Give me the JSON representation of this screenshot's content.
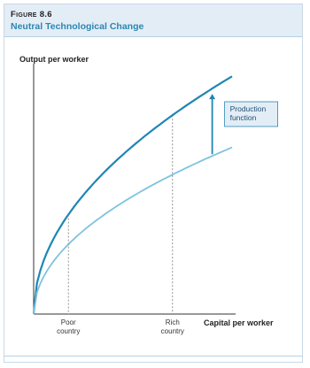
{
  "figure": {
    "number": "Figure 8.6",
    "title": "Neutral Technological Change"
  },
  "chart_data": {
    "type": "line",
    "title": "Neutral Technological Change",
    "ylabel": "Output per worker",
    "xlabel": "Capital per worker",
    "xlim": [
      0,
      1
    ],
    "ylim": [
      0,
      1
    ],
    "grid": false,
    "colors": {
      "upper": "#1f86b4",
      "lower": "#7ec3e0",
      "axis": "#333333",
      "guide": "#777777",
      "arrow": "#1f86b4",
      "callout_bg": "#e3edf6",
      "callout_border": "#2a87b3"
    },
    "series": [
      {
        "key": "upper",
        "exponent": 0.5,
        "x": [
          0,
          1
        ],
        "y_at_1": 0.97
      },
      {
        "key": "lower",
        "exponent": 0.5,
        "x": [
          0,
          1
        ],
        "y_at_1": 0.68
      }
    ],
    "markers": [
      {
        "x": 0.175,
        "label_lines": [
          "Poor",
          "country"
        ]
      },
      {
        "x": 0.7,
        "label_lines": [
          "Rich",
          "country"
        ]
      }
    ],
    "annotation": {
      "label_lines": [
        "Production",
        "function"
      ],
      "arrow_x": 0.9
    }
  }
}
